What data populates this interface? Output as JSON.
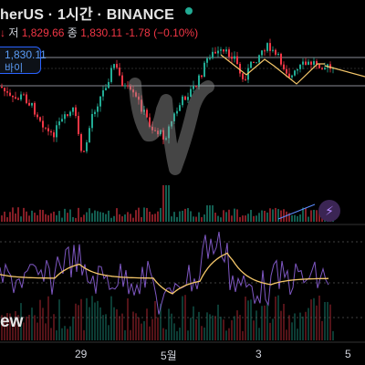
{
  "header": {
    "symbol_title": "herUS · 1시간 · BINANCE",
    "ohlc_arrow": "↓",
    "low_label": "저",
    "low_value": "1,829.66",
    "close_label": "종",
    "close_value": "1,830.11",
    "change": "-1.78",
    "change_pct": "(−0.10%)"
  },
  "sell_button": {
    "price": "1,830.11",
    "label": "바이"
  },
  "indicator_label": "ew",
  "x_axis": {
    "labels": [
      "29",
      "5월",
      "3",
      "5"
    ]
  },
  "colors": {
    "up": "#22ab94",
    "down": "#f23645",
    "rsi": "#7e57c2",
    "ma": "#f5c76a",
    "accent": "#2962ff"
  },
  "icons": {
    "flash": "lightning-icon",
    "live": "status-dot"
  },
  "chart_data": {
    "type": "candlestick",
    "timeframe": "1시간",
    "exchange": "BINANCE",
    "last_close": 1830.11,
    "panes": [
      "price",
      "volume",
      "oscillator"
    ],
    "oscillator_series": [
      {
        "color": "#7e57c2"
      },
      {
        "color": "#f5c76a"
      }
    ]
  }
}
